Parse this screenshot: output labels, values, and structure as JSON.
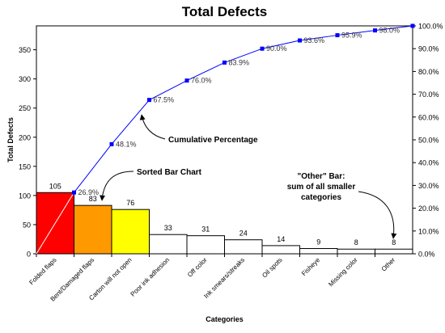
{
  "chart_data": {
    "type": "bar",
    "title": "Total Defects",
    "xlabel": "Categories",
    "ylabel": "Total Defects",
    "categories": [
      "Folded flaps",
      "Bent/Damaged flaps",
      "Carton will not open",
      "Poor ink adhesion",
      "Off color",
      "Ink smears/streaks",
      "Oil spots",
      "Fisheye",
      "Missing color",
      "Other"
    ],
    "values": [
      105,
      83,
      76,
      33,
      31,
      24,
      14,
      9,
      8,
      8
    ],
    "value_labels": [
      "105",
      "83",
      "76",
      "33",
      "31",
      "24",
      "14",
      "9",
      "8",
      "8"
    ],
    "bar_colors": [
      "#ff0000",
      "#ff9900",
      "#ffff00",
      "#ffffff",
      "#ffffff",
      "#ffffff",
      "#ffffff",
      "#ffffff",
      "#ffffff",
      "#ffffff"
    ],
    "ylim": [
      0,
      391
    ],
    "yticks": [
      0,
      50,
      100,
      150,
      200,
      250,
      300,
      350
    ],
    "y2lim": [
      0,
      100
    ],
    "y2ticks": [
      0,
      10,
      20,
      30,
      40,
      50,
      60,
      70,
      80,
      90,
      100
    ],
    "y2tick_labels": [
      "0.0%",
      "10.0%",
      "20.0%",
      "30.0%",
      "40.0%",
      "50.0%",
      "60.0%",
      "70.0%",
      "80.0%",
      "90.0%",
      "100.0%"
    ],
    "cumulative": {
      "values": [
        26.9,
        48.1,
        67.5,
        76.0,
        83.9,
        90.0,
        93.6,
        95.9,
        98.0,
        100.0
      ],
      "labels": [
        "26.9%",
        "48.1%",
        "67.5%",
        "76.0%",
        "83.9%",
        "90.0%",
        "93.6%",
        "95.9%",
        "98.0%",
        ""
      ],
      "color": "#0000ff"
    },
    "annotations": [
      {
        "text": [
          "Cumulative Percentage"
        ]
      },
      {
        "text": [
          "Sorted Bar Chart"
        ]
      },
      {
        "text": [
          "\"Other\" Bar:",
          "sum of all smaller",
          "categories"
        ]
      }
    ],
    "grid": false,
    "legend": "none"
  }
}
